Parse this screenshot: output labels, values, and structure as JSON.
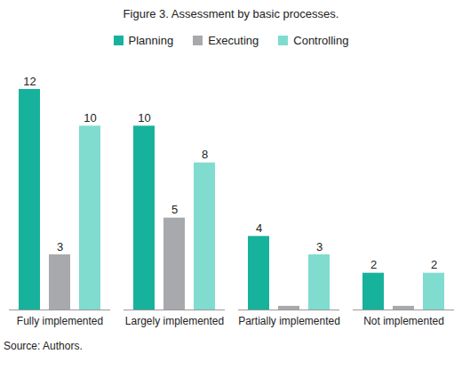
{
  "chart_data": {
    "type": "bar",
    "title": "Figure 3. Assessment by basic processes.",
    "caption": "Source: Authors.",
    "categories": [
      "Fully implemented",
      "Largely implemented",
      "Partially implemented",
      "Not implemented"
    ],
    "series": [
      {
        "name": "Planning",
        "color": "#17b29c",
        "values": [
          12,
          10,
          4,
          2
        ]
      },
      {
        "name": "Executing",
        "color": "#a8a9ad",
        "values": [
          3,
          5,
          0.2,
          0.2
        ],
        "value_labels": [
          "3",
          "5",
          null,
          null
        ]
      },
      {
        "name": "Controlling",
        "color": "#7fdccf",
        "values": [
          10,
          8,
          3,
          2
        ]
      }
    ],
    "legend": "top",
    "data_labels": true,
    "tick_labels": "x",
    "grid": false
  }
}
